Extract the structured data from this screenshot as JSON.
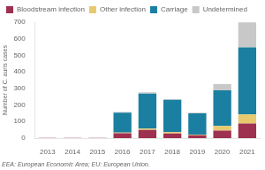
{
  "chart_data": {
    "type": "bar",
    "stacked": true,
    "categories": [
      "2013",
      "2014",
      "2015",
      "2016",
      "2017",
      "2018",
      "2019",
      "2020",
      "2021"
    ],
    "series": [
      {
        "name": "Bloodstream infection",
        "color": "#9e3050",
        "values": [
          1,
          1,
          1,
          30,
          50,
          28,
          18,
          45,
          88
        ]
      },
      {
        "name": "Other infection",
        "color": "#e8c96e",
        "values": [
          0,
          0,
          0,
          3,
          8,
          8,
          3,
          28,
          55
        ]
      },
      {
        "name": "Carriage",
        "color": "#1a7fa0",
        "values": [
          0,
          0,
          1,
          120,
          210,
          195,
          128,
          215,
          405
        ]
      },
      {
        "name": "Undetermined",
        "color": "#c8c8c8",
        "values": [
          0,
          0,
          0,
          4,
          8,
          4,
          4,
          38,
          150
        ]
      }
    ],
    "ylabel": "Number of C. auris cases",
    "ylim": [
      0,
      700
    ],
    "yticks": [
      0,
      100,
      200,
      300,
      400,
      500,
      600,
      700
    ],
    "legend": "upper left",
    "grid": false,
    "annotations": [
      "EEA: European Economic Area; EU: European Union."
    ]
  }
}
